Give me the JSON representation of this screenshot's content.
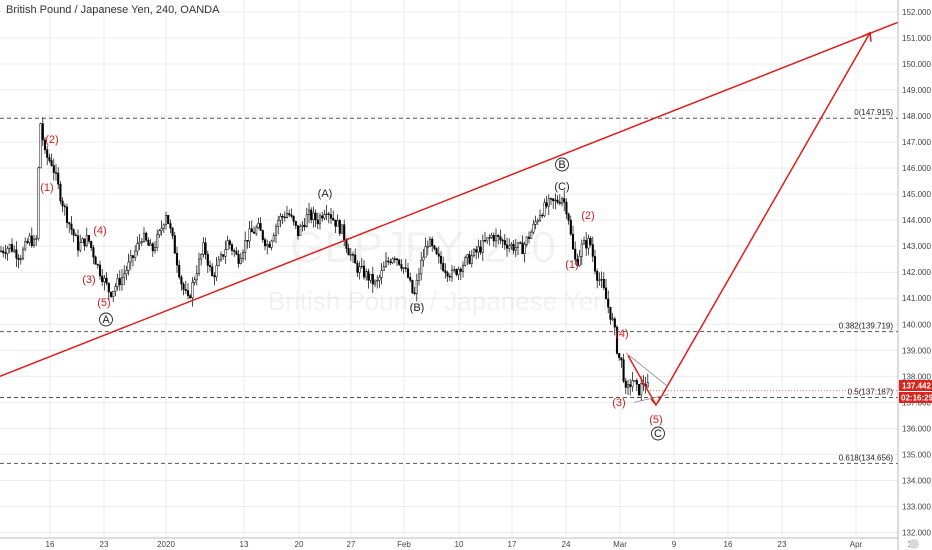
{
  "header": {
    "title": "British Pound / Japanese Yen, 240, OANDA"
  },
  "watermark": {
    "symbol": "GBPJPY, 240",
    "name": "British Pound / Japanese Yen"
  },
  "price_axis": {
    "ticks": [
      "152.000",
      "151.000",
      "150.000",
      "149.000",
      "148.000",
      "147.000",
      "146.000",
      "145.000",
      "144.000",
      "143.000",
      "142.000",
      "141.000",
      "140.000",
      "139.000",
      "138.000",
      "137.000",
      "136.000",
      "135.000",
      "134.000",
      "133.000",
      "132.000"
    ],
    "current_price": "137.442",
    "countdown": "02:16:29"
  },
  "time_axis": {
    "ticks": [
      "16",
      "23",
      "2020",
      "13",
      "20",
      "27",
      "Feb",
      "10",
      "17",
      "24",
      "Mar",
      "9",
      "16",
      "23",
      "Apr",
      "13"
    ]
  },
  "fib_levels": [
    {
      "label": "0(147.915)",
      "value": 147.915
    },
    {
      "label": "0.382(139.719)",
      "value": 139.719
    },
    {
      "label": "0.5(137.187)",
      "value": 137.187
    },
    {
      "label": "0.618(134.656)",
      "value": 134.656
    }
  ],
  "wave_labels": [
    {
      "text": "(2)",
      "color": "red"
    },
    {
      "text": "(1)",
      "color": "red"
    },
    {
      "text": "(4)",
      "color": "red"
    },
    {
      "text": "(3)",
      "color": "red"
    },
    {
      "text": "(5)",
      "color": "red"
    },
    {
      "text": "A",
      "color": "circled"
    },
    {
      "text": "(A)",
      "color": "black"
    },
    {
      "text": "(B)",
      "color": "black"
    },
    {
      "text": "B",
      "color": "circled"
    },
    {
      "text": "(C)",
      "color": "black"
    },
    {
      "text": "(2)",
      "color": "red"
    },
    {
      "text": "(1)",
      "color": "red"
    },
    {
      "text": "(4)",
      "color": "red"
    },
    {
      "text": "(3)",
      "color": "red"
    },
    {
      "text": "(5)",
      "color": "red"
    },
    {
      "text": "C",
      "color": "circled"
    }
  ],
  "colors": {
    "up_candle": "#ffffff",
    "candle_outline": "#000000",
    "down_candle": "#000000",
    "trend_line": "#e01b1b",
    "price_badge": "#d6261f",
    "countdown_badge": "#d6261f",
    "wave_red": "#d01c1c"
  },
  "chart_data": {
    "type": "candlestick",
    "title": "British Pound / Japanese Yen, 240, OANDA",
    "ylim": [
      131.7,
      152.6
    ],
    "y_ticks": [
      132,
      133,
      134,
      135,
      136,
      137,
      138,
      139,
      140,
      141,
      142,
      143,
      144,
      145,
      146,
      147,
      148,
      149,
      150,
      151,
      152
    ],
    "x_tick_labels": [
      "16",
      "23",
      "2020",
      "13",
      "20",
      "27",
      "Feb",
      "10",
      "17",
      "24",
      "Mar",
      "9",
      "16",
      "23",
      "Apr",
      "13"
    ],
    "price_path": [
      [
        0,
        142.8
      ],
      [
        10,
        143.0
      ],
      [
        20,
        142.6
      ],
      [
        30,
        143.3
      ],
      [
        36,
        143.0
      ],
      [
        40,
        147.9
      ],
      [
        45,
        146.5
      ],
      [
        52,
        146.2
      ],
      [
        60,
        145.0
      ],
      [
        68,
        144.0
      ],
      [
        78,
        143.0
      ],
      [
        88,
        143.3
      ],
      [
        98,
        142.2
      ],
      [
        110,
        141.2
      ],
      [
        122,
        141.8
      ],
      [
        132,
        142.5
      ],
      [
        142,
        143.4
      ],
      [
        152,
        142.8
      ],
      [
        160,
        143.5
      ],
      [
        166,
        144.3
      ],
      [
        174,
        143.0
      ],
      [
        182,
        141.5
      ],
      [
        188,
        140.9
      ],
      [
        196,
        142.0
      ],
      [
        204,
        143.0
      ],
      [
        212,
        141.8
      ],
      [
        220,
        142.4
      ],
      [
        228,
        143.2
      ],
      [
        238,
        142.5
      ],
      [
        248,
        143.4
      ],
      [
        258,
        143.7
      ],
      [
        268,
        143.0
      ],
      [
        278,
        144.0
      ],
      [
        288,
        144.3
      ],
      [
        298,
        143.5
      ],
      [
        308,
        144.2
      ],
      [
        318,
        144.0
      ],
      [
        326,
        144.5
      ],
      [
        334,
        144.0
      ],
      [
        342,
        143.6
      ],
      [
        348,
        142.9
      ],
      [
        356,
        142.2
      ],
      [
        366,
        141.9
      ],
      [
        376,
        141.5
      ],
      [
        386,
        142.3
      ],
      [
        394,
        142.7
      ],
      [
        402,
        142.3
      ],
      [
        408,
        141.8
      ],
      [
        414,
        141.0
      ],
      [
        420,
        142.2
      ],
      [
        428,
        143.2
      ],
      [
        436,
        142.6
      ],
      [
        444,
        142.2
      ],
      [
        452,
        141.9
      ],
      [
        462,
        142.3
      ],
      [
        472,
        142.6
      ],
      [
        482,
        143.0
      ],
      [
        492,
        143.4
      ],
      [
        502,
        143.2
      ],
      [
        512,
        143.0
      ],
      [
        522,
        142.9
      ],
      [
        532,
        143.6
      ],
      [
        540,
        144.3
      ],
      [
        548,
        144.6
      ],
      [
        556,
        144.7
      ],
      [
        562,
        144.9
      ],
      [
        568,
        144.3
      ],
      [
        572,
        143.0
      ],
      [
        576,
        142.3
      ],
      [
        582,
        143.0
      ],
      [
        590,
        143.2
      ],
      [
        596,
        142.0
      ],
      [
        602,
        141.5
      ],
      [
        608,
        140.7
      ],
      [
        614,
        139.9
      ],
      [
        618,
        138.8
      ],
      [
        622,
        138.5
      ],
      [
        626,
        137.3
      ],
      [
        632,
        137.9
      ],
      [
        638,
        137.4
      ],
      [
        644,
        137.8
      ],
      [
        650,
        137.44
      ]
    ],
    "trend_line": [
      [
        0,
        138.0
      ],
      [
        898,
        151.6
      ]
    ],
    "projection": {
      "down": [
        [
          628,
          138.8
        ],
        [
          656,
          136.9
        ]
      ],
      "up": [
        [
          658,
          137.0
        ],
        [
          870,
          151.2
        ]
      ]
    },
    "fib_levels": [
      147.915,
      139.719,
      137.187,
      134.656
    ],
    "last_price": 137.442
  }
}
